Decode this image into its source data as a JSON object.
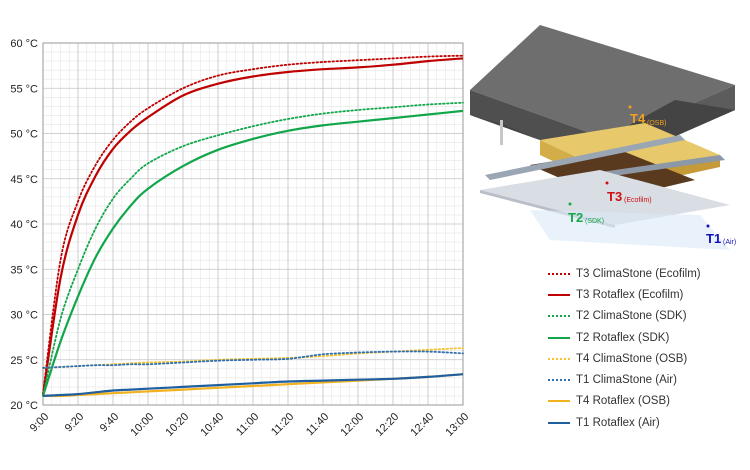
{
  "chart_data": {
    "type": "line",
    "title": "",
    "xlabel": "",
    "ylabel": "",
    "ylim": [
      20,
      60
    ],
    "y_ticks": [
      "20 °C",
      "25 °C",
      "30 °C",
      "35 °C",
      "40 °C",
      "45 °C",
      "50 °C",
      "55 °C",
      "60 °C"
    ],
    "x_ticks": [
      "9:00",
      "9:20",
      "9:40",
      "10:00",
      "10:20",
      "10:40",
      "11:00",
      "11:20",
      "11:40",
      "12:00",
      "12:20",
      "12:40",
      "13:00"
    ],
    "x": [
      "9:00",
      "9:10",
      "9:20",
      "9:30",
      "9:40",
      "9:50",
      "10:00",
      "10:20",
      "10:40",
      "11:00",
      "11:20",
      "11:40",
      "12:00",
      "12:20",
      "12:40",
      "13:00"
    ],
    "grid": true,
    "legend_position": "bottom-right",
    "series": [
      {
        "name": "T3 ClimaStone (Ecofilm)",
        "color": "#c00000",
        "style": "dotted",
        "values": [
          21.2,
          36,
          42.5,
          46.5,
          49.3,
          51.3,
          52.8,
          55,
          56.4,
          57.1,
          57.6,
          57.9,
          58.1,
          58.3,
          58.5,
          58.6
        ]
      },
      {
        "name": "T3 Rotaflex (Ecofilm)",
        "color": "#c00000",
        "style": "solid",
        "values": [
          21.0,
          34,
          41,
          45.3,
          48.3,
          50.3,
          51.8,
          54.2,
          55.5,
          56.3,
          56.8,
          57.1,
          57.3,
          57.6,
          58.0,
          58.3
        ]
      },
      {
        "name": "T2 ClimaStone (SDK)",
        "color": "#12a64a",
        "style": "dotted",
        "values": [
          21.0,
          29.5,
          35,
          39.5,
          42.8,
          45,
          46.7,
          48.6,
          49.8,
          50.8,
          51.6,
          52.2,
          52.6,
          52.9,
          53.2,
          53.4
        ]
      },
      {
        "name": "T2 Rotaflex (SDK)",
        "color": "#12a64a",
        "style": "solid",
        "values": [
          21.0,
          27,
          32,
          36.3,
          39.5,
          42,
          43.9,
          46.4,
          48.2,
          49.4,
          50.3,
          50.9,
          51.3,
          51.7,
          52.1,
          52.5
        ]
      },
      {
        "name": "T4 ClimaStone (OSB)",
        "color": "#f2c230",
        "style": "dotted",
        "values": [
          24.1,
          24.2,
          24.3,
          24.4,
          24.5,
          24.6,
          24.7,
          24.8,
          25.0,
          25.1,
          25.2,
          25.4,
          25.7,
          25.9,
          26.1,
          26.3
        ]
      },
      {
        "name": "T1 ClimaStone (Air)",
        "color": "#2f6fb0",
        "style": "dotted",
        "values": [
          24.1,
          24.2,
          24.3,
          24.4,
          24.4,
          24.5,
          24.5,
          24.7,
          24.9,
          25.0,
          25.1,
          25.6,
          25.8,
          25.9,
          25.9,
          25.7
        ]
      },
      {
        "name": "T4 Rotaflex (OSB)",
        "color": "#f2b220",
        "style": "solid",
        "values": [
          21.0,
          21.0,
          21.1,
          21.2,
          21.3,
          21.4,
          21.5,
          21.7,
          21.9,
          22.1,
          22.3,
          22.5,
          22.7,
          22.9,
          23.1,
          23.4
        ]
      },
      {
        "name": "T1 Rotaflex (Air)",
        "color": "#1f5fa0",
        "style": "solid",
        "values": [
          21.0,
          21.1,
          21.2,
          21.4,
          21.6,
          21.7,
          21.8,
          22.0,
          22.2,
          22.4,
          22.6,
          22.7,
          22.8,
          22.9,
          23.1,
          23.4
        ]
      }
    ]
  },
  "illustration": {
    "markers": [
      {
        "id": "T4",
        "sub": "(OSB)",
        "color": "#f2a020"
      },
      {
        "id": "T3",
        "sub": "(Ecofilm)",
        "color": "#d01010"
      },
      {
        "id": "T2",
        "sub": "(SDK)",
        "color": "#16a84a"
      },
      {
        "id": "T1",
        "sub": "(Air)",
        "color": "#1010c0"
      }
    ]
  }
}
